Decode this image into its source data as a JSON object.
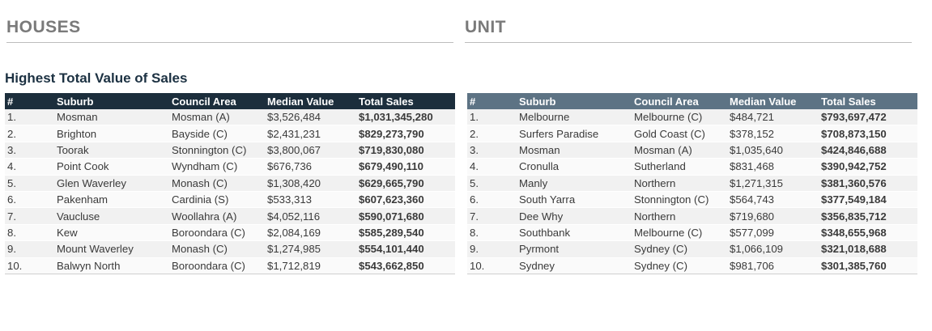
{
  "sections": {
    "houses_title": "HOUSES",
    "unit_title": "UNIT",
    "subtitle": "Highest Total Value of Sales"
  },
  "columns": [
    "#",
    "Suburb",
    "Council Area",
    "Median Value",
    "Total Sales"
  ],
  "houses": [
    {
      "rank": "1.",
      "suburb": "Mosman",
      "council": "Mosman (A)",
      "median": "$3,526,484",
      "total": "$1,031,345,280"
    },
    {
      "rank": "2.",
      "suburb": "Brighton",
      "council": "Bayside (C)",
      "median": "$2,431,231",
      "total": "$829,273,790"
    },
    {
      "rank": "3.",
      "suburb": "Toorak",
      "council": "Stonnington (C)",
      "median": "$3,800,067",
      "total": "$719,830,080"
    },
    {
      "rank": "4.",
      "suburb": "Point Cook",
      "council": "Wyndham (C)",
      "median": "$676,736",
      "total": "$679,490,110"
    },
    {
      "rank": "5.",
      "suburb": "Glen Waverley",
      "council": "Monash (C)",
      "median": "$1,308,420",
      "total": "$629,665,790"
    },
    {
      "rank": "6.",
      "suburb": "Pakenham",
      "council": "Cardinia (S)",
      "median": "$533,313",
      "total": "$607,623,360"
    },
    {
      "rank": "7.",
      "suburb": "Vaucluse",
      "council": "Woollahra (A)",
      "median": "$4,052,116",
      "total": "$590,071,680"
    },
    {
      "rank": "8.",
      "suburb": "Kew",
      "council": "Boroondara (C)",
      "median": "$2,084,169",
      "total": "$585,289,540"
    },
    {
      "rank": "9.",
      "suburb": "Mount Waverley",
      "council": "Monash (C)",
      "median": "$1,274,985",
      "total": "$554,101,440"
    },
    {
      "rank": "10.",
      "suburb": "Balwyn North",
      "council": "Boroondara (C)",
      "median": "$1,712,819",
      "total": "$543,662,850"
    }
  ],
  "units": [
    {
      "rank": "1.",
      "suburb": "Melbourne",
      "council": "Melbourne (C)",
      "median": "$484,721",
      "total": "$793,697,472"
    },
    {
      "rank": "2.",
      "suburb": "Surfers Paradise",
      "council": "Gold Coast (C)",
      "median": "$378,152",
      "total": "$708,873,150"
    },
    {
      "rank": "3.",
      "suburb": "Mosman",
      "council": "Mosman (A)",
      "median": "$1,035,640",
      "total": "$424,846,688"
    },
    {
      "rank": "4.",
      "suburb": "Cronulla",
      "council": "Sutherland",
      "median": "$831,468",
      "total": "$390,942,752"
    },
    {
      "rank": "5.",
      "suburb": "Manly",
      "council": "Northern",
      "median": "$1,271,315",
      "total": "$381,360,576"
    },
    {
      "rank": "6.",
      "suburb": "South Yarra",
      "council": "Stonnington (C)",
      "median": "$564,743",
      "total": "$377,549,184"
    },
    {
      "rank": "7.",
      "suburb": "Dee Why",
      "council": "Northern",
      "median": "$719,680",
      "total": "$356,835,712"
    },
    {
      "rank": "8.",
      "suburb": "Southbank",
      "council": "Melbourne (C)",
      "median": "$577,099",
      "total": "$348,655,968"
    },
    {
      "rank": "9.",
      "suburb": "Pyrmont",
      "council": "Sydney (C)",
      "median": "$1,066,109",
      "total": "$321,018,688"
    },
    {
      "rank": "10.",
      "suburb": "Sydney",
      "council": "Sydney (C)",
      "median": "$981,706",
      "total": "$301,385,760"
    }
  ],
  "colors": {
    "houses_header_bg": "#1c2e3c",
    "units_header_bg": "#5d7384",
    "section_heading": "#7a7a7a",
    "subtitle": "#1c3142"
  }
}
